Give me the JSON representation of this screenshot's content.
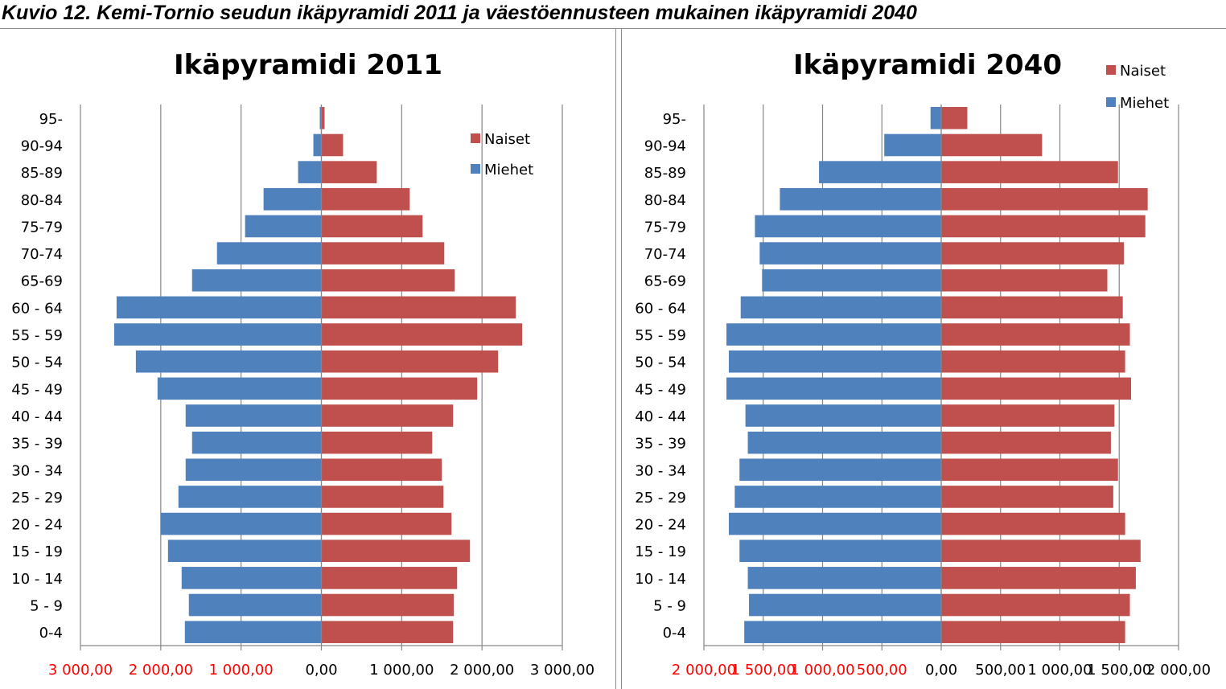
{
  "caption": "Kuvio 12. Kemi-Tornio seudun ikäpyramidi 2011 ja väestöennusteen mukainen ikäpyramidi 2040",
  "colors": {
    "naiset": "#c0504d",
    "miehet": "#4f81bd",
    "grid": "#868686",
    "neg_tick": "#ff0000",
    "pos_tick": "#000000"
  },
  "chart_data": [
    {
      "type": "bar",
      "orientation": "horizontal-pyramid",
      "title": "Ikäpyramidi 2011",
      "categories": [
        "95-",
        "90-94",
        "85-89",
        "80-84",
        "75-79",
        "70-74",
        "65-69",
        "60 - 64",
        "55 - 59",
        "50 - 54",
        "45 - 49",
        "40 - 44",
        "35 - 39",
        "30 - 34",
        "25 - 29",
        "20 - 24",
        "15 - 19",
        "10 - 14",
        "5 - 9",
        "0-4"
      ],
      "series": [
        {
          "name": "Naiset",
          "values": [
            40,
            270,
            690,
            1100,
            1260,
            1530,
            1660,
            2420,
            2500,
            2200,
            1940,
            1640,
            1380,
            1500,
            1520,
            1620,
            1850,
            1690,
            1650,
            1640
          ]
        },
        {
          "name": "Miehet",
          "values": [
            -20,
            -100,
            -290,
            -720,
            -950,
            -1300,
            -1610,
            -2550,
            -2580,
            -2310,
            -2040,
            -1690,
            -1610,
            -1690,
            -1780,
            -2000,
            -1910,
            -1740,
            -1650,
            -1700
          ]
        }
      ],
      "xlim": [
        -3000,
        3000
      ],
      "xticks": [
        -3000,
        -2000,
        -1000,
        0,
        1000,
        2000,
        3000
      ],
      "xtick_labels": [
        "3 000,00",
        "2 000,00",
        "1 000,00",
        "0,00",
        "1 000,00",
        "2 000,00",
        "3 000,00"
      ],
      "legend": [
        "Naiset",
        "Miehet"
      ],
      "legend_position": "top-right",
      "grid": true
    },
    {
      "type": "bar",
      "orientation": "horizontal-pyramid",
      "title": "Ikäpyramidi 2040",
      "categories": [
        "95-",
        "90-94",
        "85-89",
        "80-84",
        "75-79",
        "70-74",
        "65-69",
        "60 - 64",
        "55 - 59",
        "50 - 54",
        "45 - 49",
        "40 - 44",
        "35 - 39",
        "30 - 34",
        "25 - 29",
        "20 - 24",
        "15 - 19",
        "10 - 14",
        "5 - 9",
        "0-4"
      ],
      "series": [
        {
          "name": "Naiset",
          "values": [
            220,
            850,
            1490,
            1740,
            1720,
            1540,
            1400,
            1530,
            1590,
            1550,
            1600,
            1460,
            1430,
            1490,
            1450,
            1550,
            1680,
            1640,
            1590,
            1550
          ]
        },
        {
          "name": "Miehet",
          "values": [
            -90,
            -480,
            -1030,
            -1360,
            -1570,
            -1530,
            -1510,
            -1690,
            -1810,
            -1790,
            -1810,
            -1650,
            -1630,
            -1700,
            -1740,
            -1790,
            -1700,
            -1630,
            -1620,
            -1660
          ]
        }
      ],
      "xlim": [
        -2000,
        2000
      ],
      "xticks": [
        -2000,
        -1500,
        -1000,
        -500,
        0,
        500,
        1000,
        1500,
        2000
      ],
      "xtick_labels": [
        "2 000,00",
        "1 500,00",
        "1 000,00",
        "500,00",
        "0,00",
        "500,00",
        "1 000,00",
        "1 500,00",
        "2 000,00"
      ],
      "legend": [
        "Naiset",
        "Miehet"
      ],
      "legend_position": "top-right",
      "grid": true
    }
  ]
}
